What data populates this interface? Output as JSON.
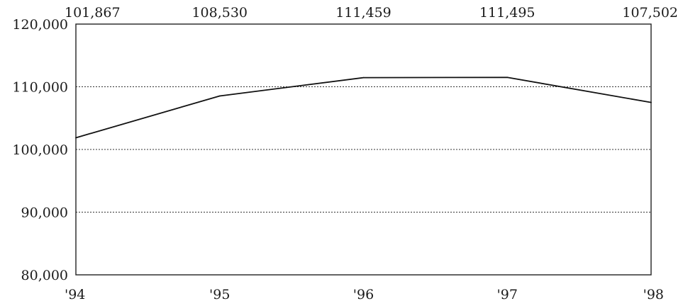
{
  "chart_data": {
    "type": "line",
    "title": "",
    "xlabel": "",
    "ylabel": "",
    "categories": [
      "'94",
      "'95",
      "'96",
      "'97",
      "'98"
    ],
    "series": [
      {
        "values": [
          101867,
          108530,
          111459,
          111495,
          107502
        ]
      }
    ],
    "data_labels": [
      "101,867",
      "108,530",
      "111,459",
      "111,495",
      "107,502"
    ],
    "ylim": [
      80000,
      120000
    ],
    "yticks": [
      80000,
      90000,
      100000,
      110000,
      120000
    ],
    "ytick_labels": [
      "80,000",
      "90,000",
      "100,000",
      "110,000",
      "120,000"
    ],
    "grid": "horizontal dotted at 90,000 / 100,000 / 110,000",
    "legend": "none"
  }
}
